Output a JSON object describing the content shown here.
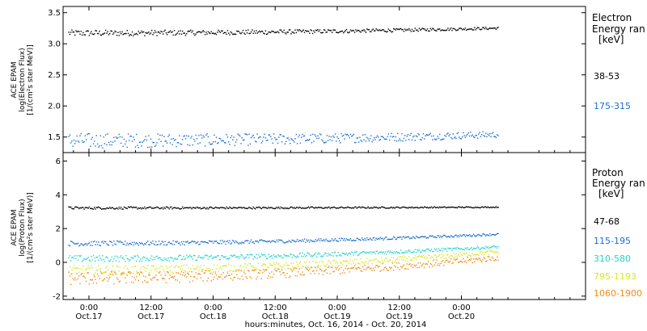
{
  "chart_data": [
    {
      "type": "scatter",
      "title": "",
      "ylabel_lines": [
        "ACE EPAM",
        "log(Electron Flux)",
        "[1/(cm²s ster MeV)]"
      ],
      "ylim": [
        1.25,
        3.6
      ],
      "yticks": [
        1.5,
        2.0,
        2.5,
        3.0,
        3.5
      ],
      "ytick_labels": [
        "1.5",
        "2.0",
        "2.5",
        "3.0",
        "3.5"
      ],
      "legend": {
        "title_lines": [
          "Electron",
          "Energy ran",
          "[keV]"
        ],
        "placement": "right"
      },
      "series": [
        {
          "name": "38-53",
          "color": "#000000",
          "base": 3.18,
          "trend": 0.08,
          "noise": 0.02
        },
        {
          "name": "175-315",
          "color": "#1b6fd1",
          "base": 1.45,
          "trend": 0.1,
          "noise": 0.05
        }
      ]
    },
    {
      "type": "scatter",
      "title": "",
      "ylabel_lines": [
        "ACE EPAM",
        "log(Proton Flux)",
        "[1/(cm²s ster MeV)]"
      ],
      "ylim": [
        -2.2,
        6.5
      ],
      "yticks": [
        -2,
        0,
        2,
        4,
        6
      ],
      "ytick_labels": [
        "-2",
        "0",
        "2",
        "4",
        "6"
      ],
      "legend": {
        "title_lines": [
          "Proton",
          "Energy ran",
          "[keV]"
        ],
        "placement": "right"
      },
      "series": [
        {
          "name": "47-68",
          "color": "#000000",
          "base": 3.25,
          "trend": 0.05,
          "noise": 0.03
        },
        {
          "name": "115-195",
          "color": "#1b6fd1",
          "base": 1.15,
          "trend": 0.55,
          "noise": 0.06
        },
        {
          "name": "310-580",
          "color": "#22d3cc",
          "base": 0.25,
          "trend": 0.7,
          "noise": 0.08
        },
        {
          "name": "795-1193",
          "color": "#d8e81e",
          "base": -0.45,
          "trend": 1.1,
          "noise": 0.12
        },
        {
          "name": "1060-1900",
          "color": "#f08c14",
          "base": -0.9,
          "trend": 1.2,
          "noise": 0.16
        }
      ]
    }
  ],
  "x_axis": {
    "tick_labels": [
      {
        "time": "0:00",
        "date": "Oct.17"
      },
      {
        "time": "12:00",
        "date": "Oct.17"
      },
      {
        "time": "0:00",
        "date": "Oct.18"
      },
      {
        "time": "12:00",
        "date": "Oct.18"
      },
      {
        "time": "0:00",
        "date": "Oct.19"
      },
      {
        "time": "12:00",
        "date": "Oct.19"
      },
      {
        "time": "0:00",
        "date": "Oct.20"
      }
    ],
    "xlim_hours": [
      -5,
      96
    ],
    "data_range_hours": [
      -4,
      79
    ],
    "xlabel": "hours:minutes, Oct. 16, 2014 - Oct. 20, 2014"
  }
}
